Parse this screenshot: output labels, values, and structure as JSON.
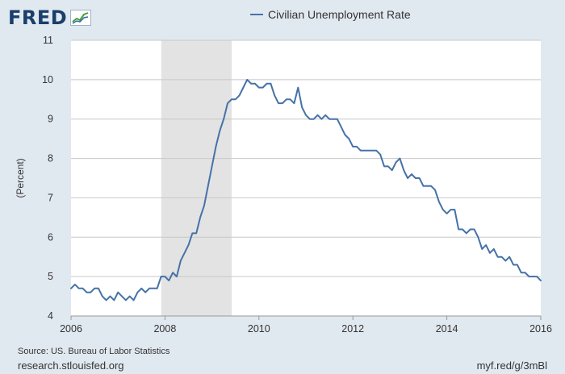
{
  "header": {
    "logo_text": "FRED"
  },
  "colors": {
    "background": "#e1e9f0",
    "plot_background": "#ffffff",
    "line": "#4572a7",
    "recession_shading": "#e3e3e3",
    "grid": "#c8c8c8",
    "logo": "#1b3f6b"
  },
  "footer": {
    "source": "Source: US. Bureau of Labor Statistics",
    "site": "research.stlouisfed.org",
    "short_url": "myf.red/g/3mBl"
  },
  "chart_data": {
    "type": "line",
    "title": "",
    "xlabel": "",
    "ylabel": "(Percent)",
    "xlim": [
      2006,
      2016
    ],
    "ylim": [
      4,
      11
    ],
    "x_ticks": [
      "2006",
      "2008",
      "2010",
      "2012",
      "2014",
      "2016"
    ],
    "y_ticks": [
      "4",
      "5",
      "6",
      "7",
      "8",
      "9",
      "10",
      "11"
    ],
    "grid": "horizontal",
    "legend": "top-center",
    "recession_shading": [
      [
        2007.92,
        2009.42
      ]
    ],
    "series": [
      {
        "name": "Civilian Unemployment Rate",
        "x_start": "2006-01",
        "frequency": "monthly",
        "values": [
          4.7,
          4.8,
          4.7,
          4.7,
          4.6,
          4.6,
          4.7,
          4.7,
          4.5,
          4.4,
          4.5,
          4.4,
          4.6,
          4.5,
          4.4,
          4.5,
          4.4,
          4.6,
          4.7,
          4.6,
          4.7,
          4.7,
          4.7,
          5.0,
          5.0,
          4.9,
          5.1,
          5.0,
          5.4,
          5.6,
          5.8,
          6.1,
          6.1,
          6.5,
          6.8,
          7.3,
          7.8,
          8.3,
          8.7,
          9.0,
          9.4,
          9.5,
          9.5,
          9.6,
          9.8,
          10.0,
          9.9,
          9.9,
          9.8,
          9.8,
          9.9,
          9.9,
          9.6,
          9.4,
          9.4,
          9.5,
          9.5,
          9.4,
          9.8,
          9.3,
          9.1,
          9.0,
          9.0,
          9.1,
          9.0,
          9.1,
          9.0,
          9.0,
          9.0,
          8.8,
          8.6,
          8.5,
          8.3,
          8.3,
          8.2,
          8.2,
          8.2,
          8.2,
          8.2,
          8.1,
          7.8,
          7.8,
          7.7,
          7.9,
          8.0,
          7.7,
          7.5,
          7.6,
          7.5,
          7.5,
          7.3,
          7.3,
          7.3,
          7.2,
          6.9,
          6.7,
          6.6,
          6.7,
          6.7,
          6.2,
          6.2,
          6.1,
          6.2,
          6.2,
          6.0,
          5.7,
          5.8,
          5.6,
          5.7,
          5.5,
          5.5,
          5.4,
          5.5,
          5.3,
          5.3,
          5.1,
          5.1,
          5.0,
          5.0,
          5.0,
          4.9
        ]
      }
    ]
  }
}
